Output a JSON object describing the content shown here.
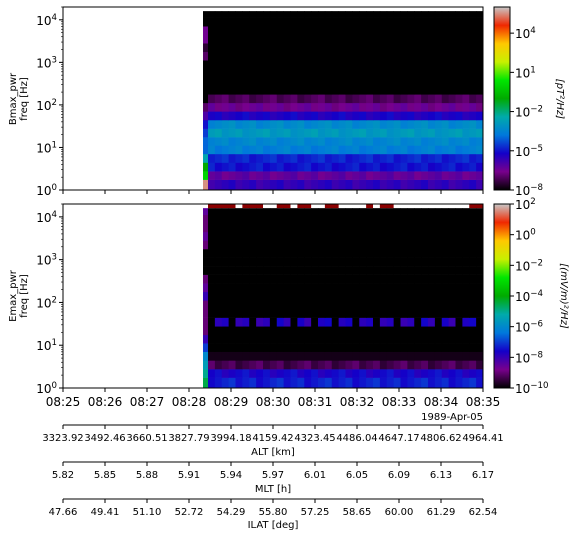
{
  "chart_data": [
    {
      "type": "heatmap",
      "id": "bmax",
      "ylabel_lines": [
        "Bmax_pwr",
        "freq [Hz]"
      ],
      "yscale": "log",
      "ylim": [
        1,
        20000
      ],
      "yticks": [
        {
          "v": 1,
          "base": "10",
          "exp": "0"
        },
        {
          "v": 10,
          "base": "10",
          "exp": "1"
        },
        {
          "v": 100,
          "base": "10",
          "exp": "2"
        },
        {
          "v": 1000,
          "base": "10",
          "exp": "3"
        },
        {
          "v": 10000,
          "base": "10",
          "exp": "4"
        }
      ],
      "data_start": "08:28:20",
      "freq_bands_hz": [
        1.4,
        2.2,
        3.5,
        5.6,
        8.9,
        14,
        22,
        35,
        56,
        89,
        141,
        224,
        355,
        562,
        891,
        1413,
        2239,
        3548,
        5623,
        8913,
        14125
      ],
      "band_log10_power": [
        -5.6,
        -6.3,
        -5.0,
        -4.8,
        -3.6,
        -3.4,
        -2.9,
        -3.3,
        -5.3,
        -6.5,
        -7.1,
        -8,
        -8,
        -8,
        -8,
        -8,
        -8,
        -8,
        -8,
        -8,
        -8
      ],
      "first_column_log10_power": [
        5.5,
        0,
        -1,
        -2.5,
        -4,
        -4,
        -4.5,
        -5,
        -6,
        -7,
        -8,
        -8,
        -8,
        -8,
        -8,
        -7,
        -7.5,
        -6.5,
        -6.5,
        -8,
        -8
      ],
      "colorbar": {
        "label": "[pT²/Hz]",
        "log_min": -8,
        "log_max": 6,
        "ticks": [
          {
            "v": -8,
            "base": "10",
            "exp": "−8"
          },
          {
            "v": -5,
            "base": "10",
            "exp": "−5"
          },
          {
            "v": -2,
            "base": "10",
            "exp": "−2"
          },
          {
            "v": 1,
            "base": "10",
            "exp": "1"
          },
          {
            "v": 4,
            "base": "10",
            "exp": "4"
          }
        ]
      }
    },
    {
      "type": "heatmap",
      "id": "emax",
      "ylabel_lines": [
        "Emax_pwr",
        "freq [Hz]"
      ],
      "yscale": "log",
      "ylim": [
        1,
        20000
      ],
      "yticks": [
        {
          "v": 1,
          "base": "10",
          "exp": "0"
        },
        {
          "v": 10,
          "base": "10",
          "exp": "1"
        },
        {
          "v": 100,
          "base": "10",
          "exp": "2"
        },
        {
          "v": 1000,
          "base": "10",
          "exp": "3"
        },
        {
          "v": 10000,
          "base": "10",
          "exp": "4"
        }
      ],
      "data_start": "08:28:20",
      "freq_bands_hz": [
        1.4,
        2.2,
        3.5,
        5.6,
        8.9,
        14,
        22,
        35,
        56,
        89,
        141,
        224,
        355,
        562,
        891,
        1413,
        2239,
        3548,
        5623,
        8913,
        14125
      ],
      "band_log10_power": [
        -7.3,
        -7.6,
        -9.3,
        -9.8,
        -10,
        -10,
        -10,
        -9.5,
        -10,
        -10,
        -10,
        -10,
        -10,
        -10,
        -10,
        -10,
        -10,
        -10,
        -10,
        -10,
        -10
      ],
      "first_column_log10_power": [
        -4.5,
        -5,
        -5.5,
        -6,
        -7,
        -8,
        -9,
        -9,
        -9,
        -9,
        -8,
        -8.5,
        -9,
        -10,
        -10,
        -10,
        -9,
        -8.5,
        -9,
        -9,
        -8.5
      ],
      "intermittent_band_hz": 35,
      "top_burst_log10_power": 2,
      "colorbar": {
        "label": "[(mV/m)²/Hz]",
        "log_min": -10,
        "log_max": 2,
        "ticks": [
          {
            "v": -10,
            "base": "10",
            "exp": "−10"
          },
          {
            "v": -8,
            "base": "10",
            "exp": "−8"
          },
          {
            "v": -6,
            "base": "10",
            "exp": "−6"
          },
          {
            "v": -4,
            "base": "10",
            "exp": "−4"
          },
          {
            "v": -2,
            "base": "10",
            "exp": "−2"
          },
          {
            "v": 0,
            "base": "10",
            "exp": "0"
          },
          {
            "v": 2,
            "base": "10",
            "exp": "2"
          }
        ]
      }
    }
  ],
  "x_axis": {
    "tmin": "08:25",
    "tmax": "08:35",
    "tick_labels": [
      "08:25",
      "08:26",
      "08:27",
      "08:28",
      "08:29",
      "08:30",
      "08:31",
      "08:32",
      "08:33",
      "08:34",
      "08:35"
    ],
    "date_label": "1989-Apr-05"
  },
  "aux_axes": [
    {
      "label": "ALT [km]",
      "values": [
        "3323.92",
        "3492.46",
        "3660.51",
        "3827.79",
        "3994.18",
        "4159.42",
        "4323.45",
        "4486.04",
        "4647.17",
        "4806.62",
        "4964.41"
      ]
    },
    {
      "label": "MLT [h]",
      "values": [
        "5.82",
        "5.85",
        "5.88",
        "5.91",
        "5.94",
        "5.97",
        "6.01",
        "6.05",
        "6.09",
        "6.13",
        "6.17"
      ]
    },
    {
      "label": "ILAT [deg]",
      "values": [
        "47.66",
        "49.41",
        "51.10",
        "52.72",
        "54.29",
        "55.80",
        "57.25",
        "58.65",
        "60.00",
        "61.29",
        "62.54"
      ]
    }
  ]
}
